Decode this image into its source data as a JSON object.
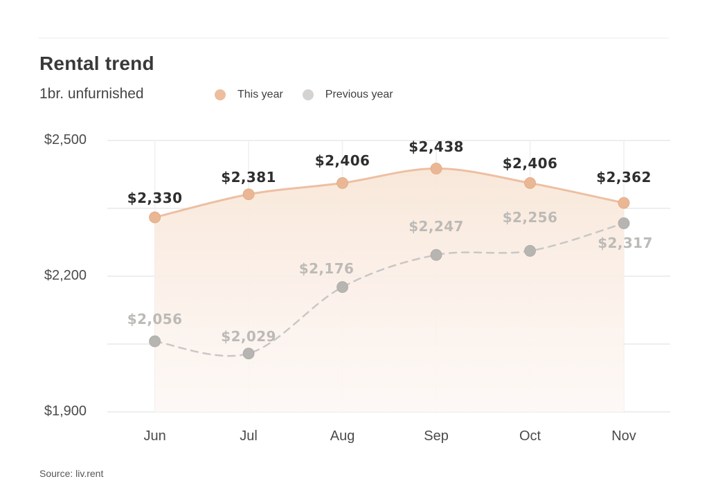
{
  "header": {
    "title": "Rental trend",
    "subtitle": "1br. unfurnished"
  },
  "source": {
    "text": "Source: liv.rent"
  },
  "chart_data": {
    "type": "line",
    "title": "Rental trend",
    "subtitle": "1br. unfurnished",
    "categories": [
      "Jun",
      "Jul",
      "Aug",
      "Sep",
      "Oct",
      "Nov"
    ],
    "series": [
      {
        "name": "This year",
        "style": "solid",
        "color": "#edbfa2",
        "dot_color": "#eab795",
        "values": [
          2330,
          2381,
          2406,
          2438,
          2406,
          2362
        ],
        "labels": [
          "$2,330",
          "$2,381",
          "$2,406",
          "$2,438",
          "$2,406",
          "$2,362"
        ]
      },
      {
        "name": "Previous year",
        "style": "dashed",
        "color": "#c9c7c5",
        "dot_color": "#b7b5b2",
        "values": [
          2056,
          2029,
          2176,
          2247,
          2256,
          2317
        ],
        "labels": [
          "$2,056",
          "$2,029",
          "$2,176",
          "$2,247",
          "$2,256",
          "$2,317"
        ]
      }
    ],
    "yticks": [
      {
        "value": 2500,
        "label": "$2,500"
      },
      {
        "value": 2200,
        "label": "$2,200"
      },
      {
        "value": 1900,
        "label": "$1,900"
      }
    ],
    "ylim": [
      1900,
      2500
    ],
    "grid": true,
    "legend_position": "top",
    "area_fill_under_first_series": true,
    "legend_colors": {
      "this_year": "#ecbd9e",
      "previous_year": "#d5d3d1"
    }
  }
}
